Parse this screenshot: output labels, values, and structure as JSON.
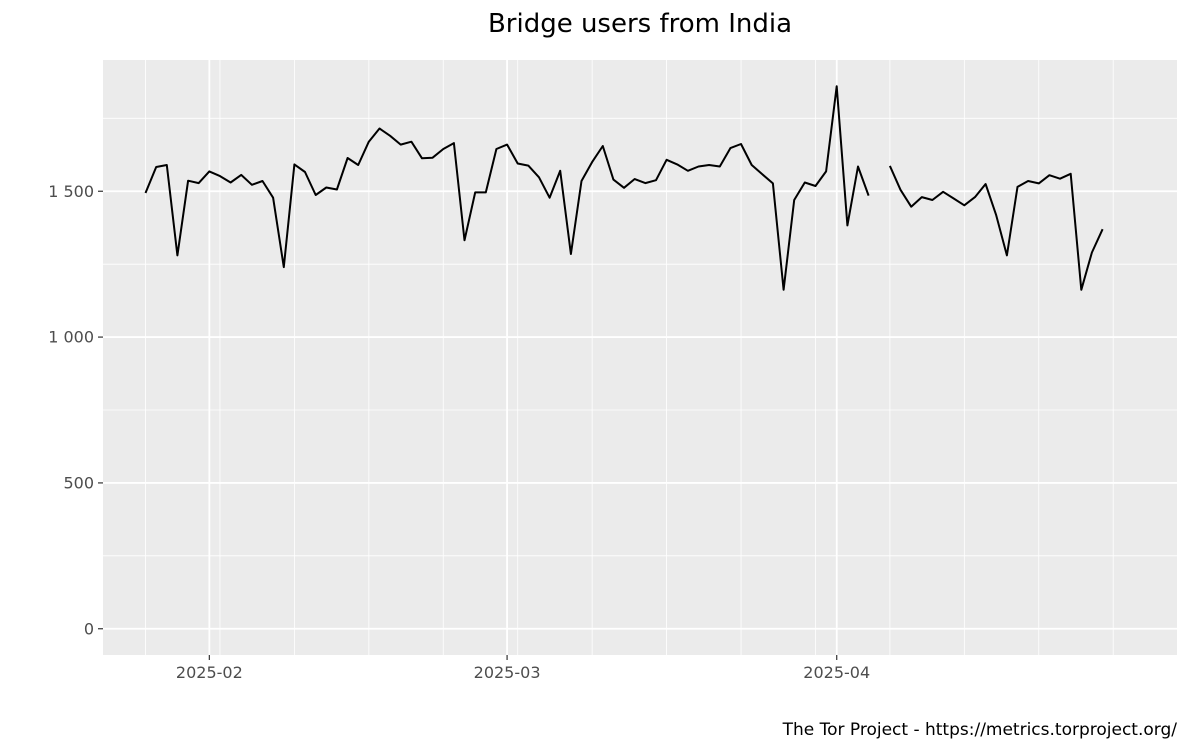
{
  "chart_data": {
    "type": "line",
    "title": "Bridge users from India",
    "caption": "The Tor Project - https://metrics.torproject.org/",
    "xlabel": "",
    "ylabel": "",
    "xlim": [
      "2025-01-22",
      "2025-05-03"
    ],
    "ylim": [
      -90,
      1950
    ],
    "x_ticks": [
      {
        "date": "2025-02-01",
        "label": "2025-02"
      },
      {
        "date": "2025-03-01",
        "label": "2025-03"
      },
      {
        "date": "2025-04-01",
        "label": "2025-04"
      }
    ],
    "y_ticks": [
      {
        "value": 0,
        "label": "0"
      },
      {
        "value": 500,
        "label": "500"
      },
      {
        "value": 1000,
        "label": "1 000"
      },
      {
        "value": 1500,
        "label": "1 500"
      }
    ],
    "grid": true,
    "legend": "none",
    "colors": {
      "panel": "#ebebeb",
      "grid": "#ffffff",
      "line": "#000000"
    },
    "series": [
      {
        "start_date": "2025-01-26",
        "values": [
          1494,
          1583,
          1590,
          1280,
          1536,
          1528,
          1568,
          1552,
          1530,
          1556,
          1522,
          1535,
          1478,
          1240,
          1592,
          1566,
          1487,
          1513,
          1506,
          1614,
          1590,
          1670,
          1715,
          1690,
          1660,
          1670,
          1613,
          1615,
          1645,
          1665,
          1332,
          1496,
          1496,
          1645,
          1660,
          1595,
          1588,
          1548,
          1478,
          1570,
          1285,
          1535,
          1600,
          1655,
          1540,
          1512,
          1542,
          1528,
          1538,
          1608,
          1592,
          1570,
          1585,
          1590,
          1585,
          1648,
          1662,
          1590,
          1558,
          1527,
          1162,
          1470,
          1530,
          1518,
          1568,
          1860,
          1383,
          1585,
          1485,
          null,
          1587,
          1505,
          1447,
          1480,
          1470,
          1498,
          1475,
          1452,
          1480,
          1525,
          1418,
          1280,
          1515,
          1535,
          1527,
          1555,
          1543,
          1560,
          1162,
          1290,
          1370
        ]
      }
    ]
  }
}
